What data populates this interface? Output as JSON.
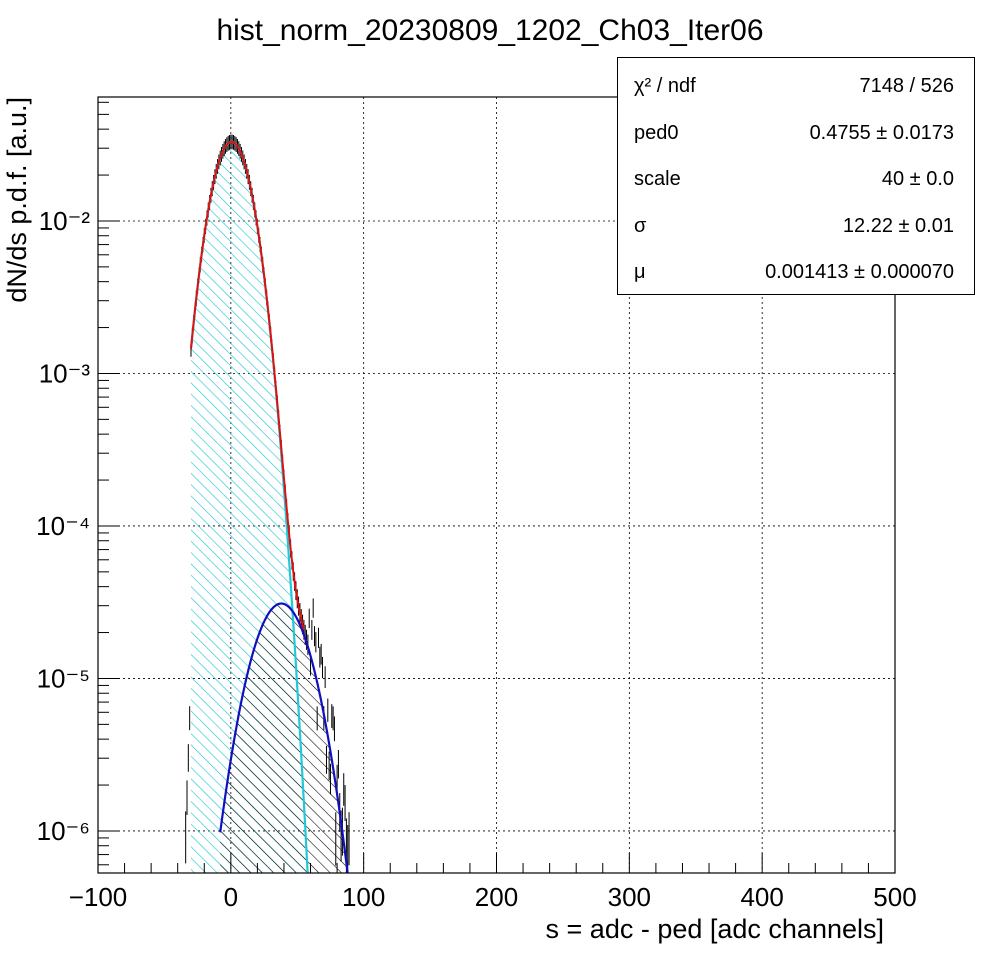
{
  "chart_data": {
    "type": "histogram",
    "title": "hist_norm_20230809_1202_Ch03_Iter06",
    "xlabel": "s = adc - ped [adc channels]",
    "ylabel": "dN/ds p.d.f. [a.u.]",
    "xlim": [
      -100,
      500
    ],
    "ylim": [
      5.3e-07,
      0.065
    ],
    "yscale": "log",
    "grid": true,
    "x_ticks": [
      -100,
      0,
      100,
      200,
      300,
      400,
      500
    ],
    "x_tick_labels": [
      "−100",
      "0",
      "100",
      "200",
      "300",
      "400",
      "500"
    ],
    "y_ticks": [
      1e-06,
      1e-05,
      0.0001,
      0.001,
      0.01
    ],
    "y_tick_labels": [
      "10⁻⁶",
      "10⁻⁵",
      "10⁻⁴",
      "10⁻³",
      "10⁻²"
    ],
    "series": [
      {
        "role": "pedestal-component",
        "color": "#22c8d8",
        "fill": "hatched",
        "model": "gaussian",
        "amplitude": 0.033,
        "mean": 0.5,
        "sigma": 12.2,
        "x_range": [
          -30,
          58
        ]
      },
      {
        "role": "signal-component",
        "color": "#1010c0",
        "fill": "hatched",
        "model": "gaussian",
        "amplitude": 3.1e-05,
        "mean": 38,
        "sigma": 17.5,
        "x_range": [
          -8,
          95
        ]
      },
      {
        "role": "total-fit",
        "color": "#e01010",
        "model": "sum",
        "x_range": [
          -30,
          55
        ]
      },
      {
        "role": "data-histogram",
        "color": "#000000",
        "model": "sum-with-noise",
        "x_range": [
          -40,
          92
        ]
      }
    ],
    "stats_box": {
      "rows": [
        {
          "name": "χ² / ndf",
          "value": "7148 / 526"
        },
        {
          "name": "ped0",
          "value": "0.4755 ± 0.0173"
        },
        {
          "name": "scale",
          "value": "40 ± 0.0"
        },
        {
          "name": "σ",
          "value": "12.22 ± 0.01"
        },
        {
          "name": "μ",
          "value": "0.001413 ± 0.000070"
        }
      ]
    }
  }
}
